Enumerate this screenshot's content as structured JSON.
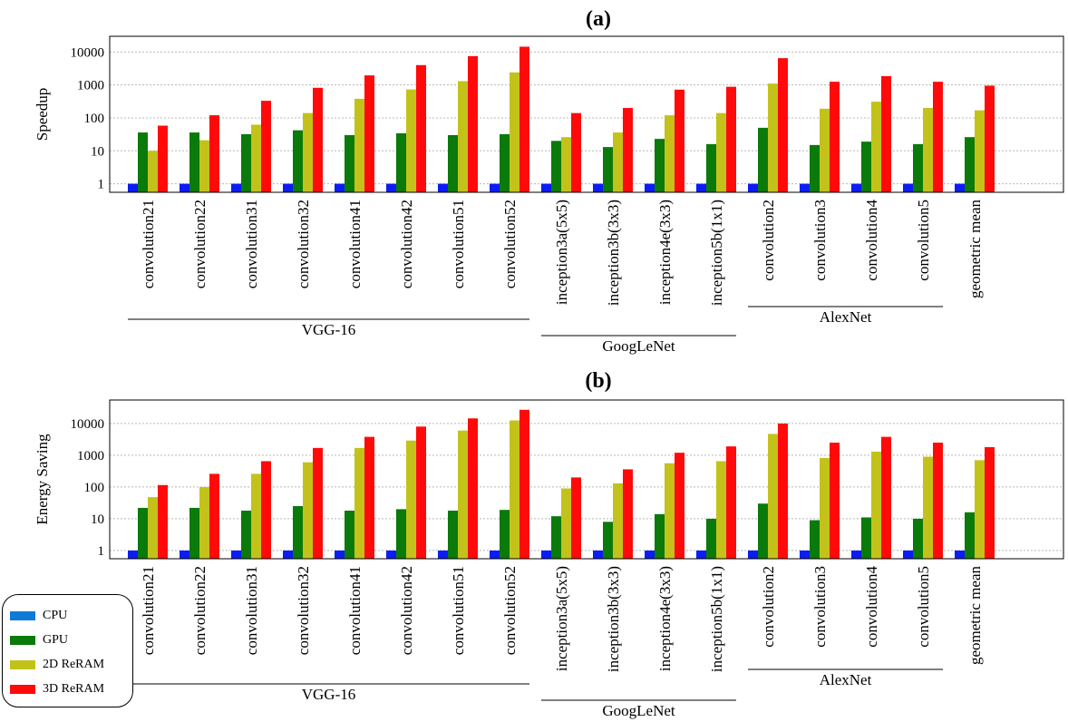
{
  "chart_data": [
    {
      "type": "bar",
      "title": "(a)",
      "ylabel": "Speedup",
      "xlabel": "",
      "yscale": "log",
      "ylim": [
        0.55,
        30000
      ],
      "yticks": [
        "1",
        "10",
        "100",
        "1000",
        "10000"
      ],
      "grid": true,
      "categories": [
        "convolution21",
        "convolution22",
        "convolution31",
        "convolution32",
        "convolution41",
        "convolution42",
        "convolution51",
        "convolution52",
        "inception3a(5x5)",
        "inception3b(3x3)",
        "inception4e(3x3)",
        "inception5b(1x1)",
        "convolution2",
        "convolution3",
        "convolution4",
        "convolution5",
        "geometric mean"
      ],
      "groups": [
        {
          "label": "VGG-16",
          "start": 0,
          "end": 7
        },
        {
          "label": "GoogLeNet",
          "start": 8,
          "end": 11
        },
        {
          "label": "AlexNet",
          "start": 12,
          "end": 15
        }
      ],
      "series": [
        {
          "name": "CPU",
          "values": [
            1,
            1,
            1,
            1,
            1,
            1,
            1,
            1,
            1,
            1,
            1,
            1,
            1,
            1,
            1,
            1,
            1
          ]
        },
        {
          "name": "GPU",
          "values": [
            36,
            36,
            32,
            42,
            30,
            34,
            30,
            32,
            20,
            13,
            23,
            16,
            50,
            15,
            19,
            16,
            26
          ]
        },
        {
          "name": "2D ReRAM",
          "values": [
            10,
            21,
            62,
            140,
            380,
            730,
            1300,
            2400,
            26,
            36,
            120,
            140,
            1100,
            190,
            310,
            200,
            170
          ]
        },
        {
          "name": "3D ReRAM",
          "values": [
            58,
            120,
            330,
            820,
            1950,
            4000,
            7500,
            14500,
            140,
            200,
            720,
            880,
            6500,
            1250,
            1850,
            1250,
            950
          ]
        }
      ]
    },
    {
      "type": "bar",
      "title": "(b)",
      "ylabel": "Energy Saving",
      "xlabel": "",
      "yscale": "log",
      "ylim": [
        0.55,
        55000
      ],
      "yticks": [
        "1",
        "10",
        "100",
        "1000",
        "10000"
      ],
      "grid": true,
      "categories": [
        "convolution21",
        "convolution22",
        "convolution31",
        "convolution32",
        "convolution41",
        "convolution42",
        "convolution51",
        "convolution52",
        "inception3a(5x5)",
        "inception3b(3x3)",
        "inception4e(3x3)",
        "inception5b(1x1)",
        "convolution2",
        "convolution3",
        "convolution4",
        "convolution5",
        "geometric mean"
      ],
      "groups": [
        {
          "label": "VGG-16",
          "start": 0,
          "end": 7
        },
        {
          "label": "GoogLeNet",
          "start": 8,
          "end": 11
        },
        {
          "label": "AlexNet",
          "start": 12,
          "end": 15
        }
      ],
      "series": [
        {
          "name": "CPU",
          "values": [
            1,
            1,
            1,
            1,
            1,
            1,
            1,
            1,
            1,
            1,
            1,
            1,
            1,
            1,
            1,
            1,
            1
          ]
        },
        {
          "name": "GPU",
          "values": [
            22,
            22,
            18,
            25,
            18,
            20,
            18,
            19,
            12,
            8,
            14,
            10,
            30,
            9,
            11,
            10,
            16
          ]
        },
        {
          "name": "2D ReRAM",
          "values": [
            48,
            100,
            260,
            600,
            1700,
            2900,
            6000,
            12500,
            90,
            130,
            560,
            650,
            4700,
            820,
            1300,
            900,
            700
          ]
        },
        {
          "name": "3D ReRAM",
          "values": [
            115,
            260,
            650,
            1700,
            3800,
            8000,
            14500,
            27000,
            200,
            360,
            1200,
            1900,
            10000,
            2500,
            3800,
            2500,
            1800
          ]
        }
      ]
    }
  ],
  "legend": {
    "items": [
      {
        "name": "CPU",
        "color": "#0b1df2"
      },
      {
        "name": "GPU",
        "color": "#0a7a0a"
      },
      {
        "name": "2D ReRAM",
        "color": "#c3c21a"
      },
      {
        "name": "3D ReRAM",
        "color": "#ff0a0a"
      }
    ],
    "swatch_color_cpu": "#0f7bd8"
  }
}
